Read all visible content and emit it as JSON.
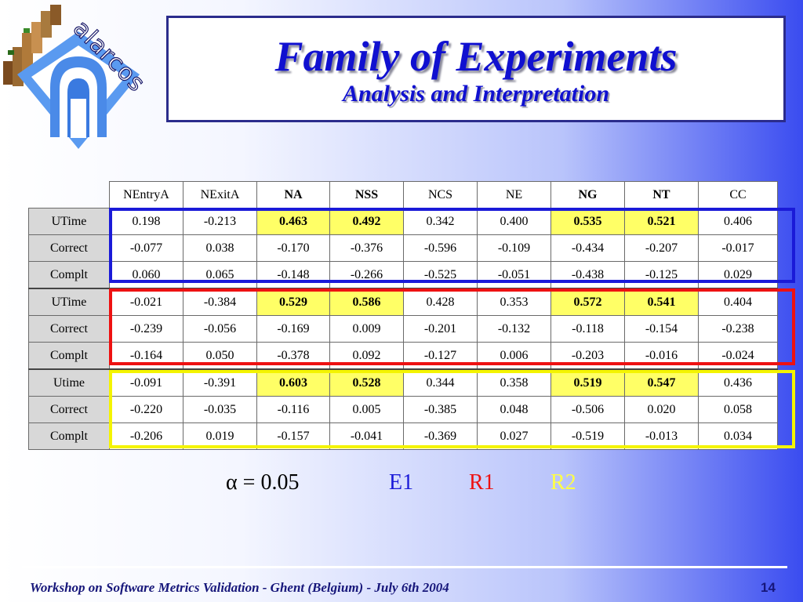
{
  "header": {
    "title": "Family of Experiments",
    "subtitle": "Analysis and Interpretation",
    "logo_text": "alarcos"
  },
  "table": {
    "columns": [
      "NEntryA",
      "NExitA",
      "NA",
      "NSS",
      "NCS",
      "NE",
      "NG",
      "NT",
      "CC"
    ],
    "bold_columns": [
      "NA",
      "NSS",
      "NG",
      "NT"
    ],
    "groups": [
      {
        "name": "E1",
        "rows": [
          {
            "label": "UTime",
            "values": [
              "0.198",
              "-0.213",
              "0.463",
              "0.492",
              "0.342",
              "0.400",
              "0.535",
              "0.521",
              "0.406"
            ],
            "highlight": [
              2,
              3,
              6,
              7
            ]
          },
          {
            "label": "Correct",
            "values": [
              "-0.077",
              "0.038",
              "-0.170",
              "-0.376",
              "-0.596",
              "-0.109",
              "-0.434",
              "-0.207",
              "-0.017"
            ],
            "highlight": []
          },
          {
            "label": "Complt",
            "values": [
              "0.060",
              "0.065",
              "-0.148",
              "-0.266",
              "-0.525",
              "-0.051",
              "-0.438",
              "-0.125",
              "0.029"
            ],
            "highlight": []
          }
        ]
      },
      {
        "name": "R1",
        "rows": [
          {
            "label": "UTime",
            "values": [
              "-0.021",
              "-0.384",
              "0.529",
              "0.586",
              "0.428",
              "0.353",
              "0.572",
              "0.541",
              "0.404"
            ],
            "highlight": [
              2,
              3,
              6,
              7
            ]
          },
          {
            "label": "Correct",
            "values": [
              "-0.239",
              "-0.056",
              "-0.169",
              "0.009",
              "-0.201",
              "-0.132",
              "-0.118",
              "-0.154",
              "-0.238"
            ],
            "highlight": []
          },
          {
            "label": "Complt",
            "values": [
              "-0.164",
              "0.050",
              "-0.378",
              "0.092",
              "-0.127",
              "0.006",
              "-0.203",
              "-0.016",
              "-0.024"
            ],
            "highlight": []
          }
        ]
      },
      {
        "name": "R2",
        "rows": [
          {
            "label": "Utime",
            "values": [
              "-0.091",
              "-0.391",
              "0.603",
              "0.528",
              "0.344",
              "0.358",
              "0.519",
              "0.547",
              "0.436"
            ],
            "highlight": [
              2,
              3,
              6,
              7
            ]
          },
          {
            "label": "Correct",
            "values": [
              "-0.220",
              "-0.035",
              "-0.116",
              "0.005",
              "-0.385",
              "0.048",
              "-0.506",
              "0.020",
              "0.058"
            ],
            "highlight": []
          },
          {
            "label": "Complt",
            "values": [
              "-0.206",
              "0.019",
              "-0.157",
              "-0.041",
              "-0.369",
              "0.027",
              "-0.519",
              "-0.013",
              "0.034"
            ],
            "highlight": []
          }
        ]
      }
    ]
  },
  "legend": {
    "alpha": "α = 0.05",
    "e1": "E1",
    "r1": "R1",
    "r2": "R2"
  },
  "colors": {
    "e1": "#1a1ad8",
    "r1": "#ee1111",
    "r2": "#f4f400",
    "highlight": "#ffff66",
    "title": "#1010d0"
  },
  "footer": {
    "text": "Workshop on Software Metrics Validation - Ghent (Belgium) - July 6th 2004",
    "page": "14"
  }
}
